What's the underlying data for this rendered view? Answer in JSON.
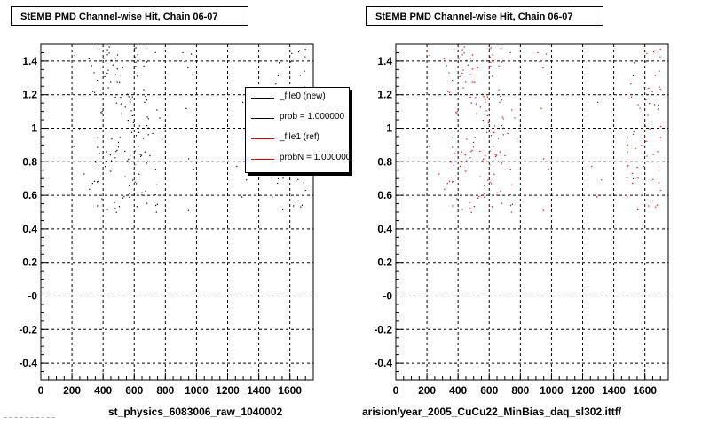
{
  "window": {
    "footer_text": "~ ~ ~ ~ ~ ~ ~ ~ ~ ~"
  },
  "colors": {
    "series_new": "#000000",
    "series_ref": "#cc0000",
    "grid": "#000000"
  },
  "legend": {
    "entries": [
      {
        "label": "_file0 (new)",
        "color": "#000000"
      },
      {
        "label": "prob = 1.000000",
        "color": "#000000"
      },
      {
        "label": "_file1 (ref)",
        "color": "#cc0000"
      },
      {
        "label": "probN = 1.000000",
        "color": "#cc0000"
      }
    ]
  },
  "chart_data": [
    {
      "type": "scatter",
      "title": "StEMB PMD Channel-wise Hit, Chain 06-07",
      "xlabel": "st_physics_6083006_raw_1040002",
      "ylabel": "",
      "xlim": [
        0,
        1750
      ],
      "ylim": [
        -0.5,
        1.5
      ],
      "xticks": [
        "0",
        "200",
        "400",
        "600",
        "800",
        "1000",
        "1200",
        "1400",
        "1600"
      ],
      "yticks": [
        "-0.4",
        "-0.2",
        "-0",
        "0.2",
        "0.4",
        "0.6",
        "0.8",
        "1",
        "1.2",
        "1.4"
      ],
      "grid": true,
      "legend_position": "top-right",
      "series": [
        {
          "name": "_file0 (new)",
          "color": "#000000",
          "clusters": [
            [
              200,
              320,
              0.05
            ],
            [
              320,
              420,
              0.25
            ],
            [
              420,
              560,
              0.35
            ],
            [
              560,
              700,
              0.45
            ],
            [
              700,
              780,
              0.15
            ],
            [
              900,
              980,
              0.12
            ],
            [
              1250,
              1320,
              0.05
            ],
            [
              1480,
              1580,
              0.25
            ],
            [
              1580,
              1700,
              0.35
            ]
          ]
        }
      ]
    },
    {
      "type": "scatter",
      "title": "StEMB PMD Channel-wise Hit, Chain 06-07",
      "xlabel": "arision/year_2005_CuCu22_MinBias_daq_sl302.ittf/",
      "ylabel": "",
      "xlim": [
        0,
        1750
      ],
      "ylim": [
        -0.5,
        1.5
      ],
      "xticks": [
        "0",
        "200",
        "400",
        "600",
        "800",
        "1000",
        "1200",
        "1400",
        "1600"
      ],
      "yticks": [
        "-0.4",
        "-0.2",
        "-0",
        "0.2",
        "0.4",
        "0.6",
        "0.8",
        "1",
        "1.2",
        "1.4"
      ],
      "grid": true,
      "legend_position": "top-right",
      "series": [
        {
          "name": "_file1 (ref)",
          "color": "#cc0000",
          "clusters": [
            [
              200,
              320,
              0.05
            ],
            [
              320,
              420,
              0.25
            ],
            [
              420,
              560,
              0.35
            ],
            [
              560,
              700,
              0.45
            ],
            [
              700,
              780,
              0.15
            ],
            [
              900,
              980,
              0.12
            ],
            [
              1250,
              1320,
              0.05
            ],
            [
              1480,
              1580,
              0.25
            ],
            [
              1580,
              1700,
              0.35
            ]
          ]
        }
      ]
    }
  ]
}
